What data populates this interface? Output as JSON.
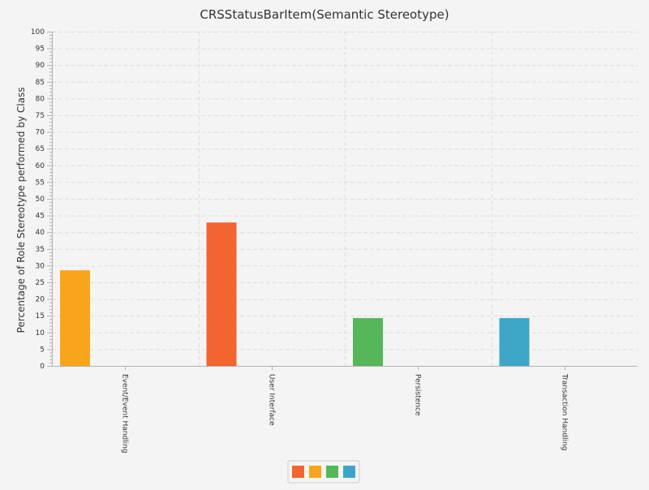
{
  "chart_data": {
    "type": "bar",
    "title": "CRSStatusBarItem(Semantic Stereotype)",
    "xlabel": "",
    "ylabel": "Percentage of Role Stereotype performed by Class",
    "ylim": [
      0,
      100
    ],
    "y_major_ticks": [
      0,
      5,
      10,
      15,
      20,
      25,
      30,
      35,
      40,
      45,
      50,
      55,
      60,
      65,
      70,
      75,
      80,
      85,
      90,
      95,
      100
    ],
    "y_minor_step": 1,
    "grid": true,
    "legend_position": "bottom-center",
    "categories": [
      "Event/Event Handling",
      "User Interface",
      "Persistence",
      "Transaction Handling"
    ],
    "series": [
      {
        "color": "#f26430",
        "values": [
          0,
          42.9,
          0,
          0
        ]
      },
      {
        "color": "#f9a51b",
        "values": [
          28.6,
          0,
          0,
          0
        ]
      },
      {
        "color": "#55b65a",
        "values": [
          0,
          0,
          14.3,
          0
        ]
      },
      {
        "color": "#3ea6c8",
        "values": [
          0,
          0,
          0,
          14.3
        ]
      }
    ]
  }
}
